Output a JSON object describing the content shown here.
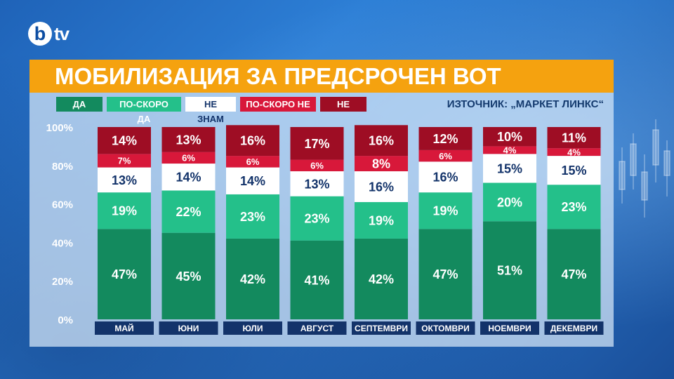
{
  "brand": {
    "logo_letter": "b",
    "logo_suffix": "tv"
  },
  "title": "МОБИЛИЗАЦИЯ ЗА ПРЕДСРОЧЕН ВОТ",
  "source": "ИЗТОЧНИК: „МАРКЕТ ЛИНКС“",
  "colors": {
    "da": "#138a5e",
    "po_skoro_da": "#24c08a",
    "ne_znam": "#ffffff",
    "po_skoro_ne": "#d8183a",
    "ne": "#9e0d24",
    "axis_label": "#ffffff",
    "category_bar": "#13336a"
  },
  "chart_data": {
    "type": "bar",
    "stacked": true,
    "title": "МОБИЛИЗАЦИЯ ЗА ПРЕДСРОЧЕН ВОТ",
    "categories": [
      "МАЙ",
      "ЮНИ",
      "ЮЛИ",
      "АВГУСТ",
      "СЕПТЕМВРИ",
      "ОКТОМВРИ",
      "НОЕМВРИ",
      "ДЕКЕМВРИ"
    ],
    "series": [
      {
        "name": "ДА",
        "color": "#138a5e",
        "values": [
          47,
          45,
          42,
          41,
          42,
          47,
          51,
          47
        ]
      },
      {
        "name": "ПО-СКОРО ДА",
        "color": "#24c08a",
        "values": [
          19,
          22,
          23,
          23,
          19,
          19,
          20,
          23
        ]
      },
      {
        "name": "НЕ ЗНАМ",
        "color": "#ffffff",
        "values": [
          13,
          14,
          14,
          13,
          16,
          16,
          15,
          15
        ]
      },
      {
        "name": "ПО-СКОРО НЕ",
        "color": "#d8183a",
        "values": [
          7,
          6,
          6,
          6,
          8,
          6,
          4,
          4
        ]
      },
      {
        "name": "НЕ",
        "color": "#9e0d24",
        "values": [
          14,
          13,
          16,
          17,
          16,
          12,
          10,
          11
        ]
      }
    ],
    "ylim": [
      0,
      100
    ],
    "yticks": [
      "0%",
      "20%",
      "40%",
      "60%",
      "80%",
      "100%"
    ],
    "value_suffix": "%",
    "legend_position": "top-left",
    "grid": false
  }
}
